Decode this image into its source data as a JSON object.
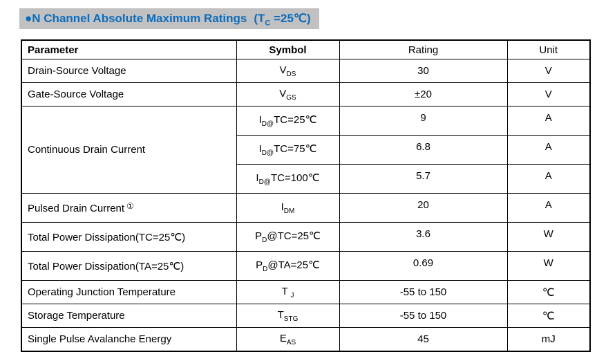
{
  "title": {
    "bullet": "●",
    "text": "N Channel Absolute Maximum Ratings",
    "cond_base": "(T",
    "cond_sub": "C",
    "cond_rest": " =25℃)"
  },
  "colors": {
    "title_text": "#0b6dbd",
    "title_background": "#c1c1c1",
    "table_border": "#000000"
  },
  "table": {
    "headers": {
      "parameter": "Parameter",
      "symbol": "Symbol",
      "rating": "Rating",
      "unit": "Unit"
    },
    "rows": [
      {
        "parameter": "Drain-Source Voltage",
        "symbol_base": "V",
        "symbol_sub": "DS",
        "symbol_rest": "",
        "rating": "30",
        "unit": "V"
      },
      {
        "parameter": "Gate-Source Voltage",
        "symbol_base": "V",
        "symbol_sub": "GS",
        "symbol_rest": "",
        "rating": "±20",
        "unit": "V"
      },
      {
        "parameter": "Continuous Drain Current",
        "symbol_base": "I",
        "symbol_sub": "D@",
        "symbol_rest": "TC=25℃",
        "rating": "9",
        "unit": "A"
      },
      {
        "symbol_base": "I",
        "symbol_sub": "D@",
        "symbol_rest": "TC=75℃",
        "rating": "6.8",
        "unit": "A"
      },
      {
        "symbol_base": "I",
        "symbol_sub": "D@",
        "symbol_rest": "TC=100℃",
        "rating": "5.7",
        "unit": "A"
      },
      {
        "parameter": "Pulsed Drain Current",
        "note": "①",
        "symbol_base": "I",
        "symbol_sub": "DM",
        "symbol_rest": "",
        "rating": "20",
        "unit": "A"
      },
      {
        "parameter": "Total Power Dissipation(TC=25℃)",
        "symbol_base": "P",
        "symbol_sub": "D",
        "symbol_rest": "@TC=25℃",
        "rating": "3.6",
        "unit": "W"
      },
      {
        "parameter": "Total Power Dissipation(TA=25℃)",
        "symbol_base": "P",
        "symbol_sub": "D",
        "symbol_rest": "@TA=25℃",
        "rating": "0.69",
        "unit": "W"
      },
      {
        "parameter": "Operating Junction Temperature",
        "symbol_base": "T ",
        "symbol_sub": "J",
        "symbol_rest": "",
        "rating": "-55 to 150",
        "unit": "℃"
      },
      {
        "parameter": "Storage Temperature",
        "symbol_base": "T",
        "symbol_sub": "STG",
        "symbol_rest": "",
        "rating": "-55 to 150",
        "unit": "℃"
      },
      {
        "parameter": "Single Pulse Avalanche Energy",
        "symbol_base": "E",
        "symbol_sub": "AS",
        "symbol_rest": "",
        "rating": "45",
        "unit": "mJ"
      }
    ]
  }
}
